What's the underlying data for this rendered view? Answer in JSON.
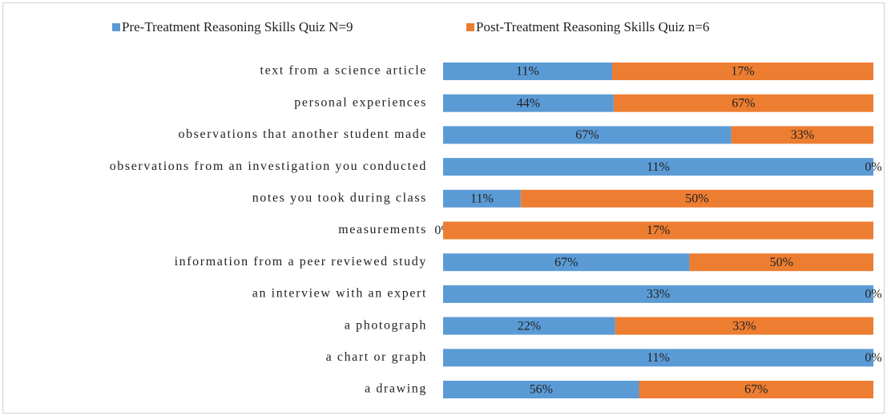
{
  "chart_data": {
    "type": "bar",
    "orientation": "horizontal",
    "stacking": "percent",
    "categories": [
      "text from a science article",
      "personal experiences",
      "observations that another student made",
      "observations from an investigation you conducted",
      "notes you took during class",
      "measurements",
      "information from a peer reviewed study",
      "an interview with an expert",
      "a photograph",
      "a chart or graph",
      "a drawing"
    ],
    "series": [
      {
        "name": "Pre-Treatment Reasoning Skills Quiz N=9",
        "color": "#5b9bd5",
        "values": [
          11,
          44,
          67,
          11,
          11,
          0,
          67,
          33,
          22,
          11,
          56
        ],
        "value_labels": [
          "11%",
          "44%",
          "67%",
          "11%",
          "11%",
          "0%",
          "67%",
          "33%",
          "22%",
          "11%",
          "56%"
        ]
      },
      {
        "name": "Post-Treatment Reasoning Skills Quiz n=6",
        "color": "#ed7d31",
        "values": [
          17,
          67,
          33,
          0,
          50,
          17,
          50,
          0,
          33,
          0,
          67
        ],
        "value_labels": [
          "17%",
          "67%",
          "33%",
          "0%",
          "50%",
          "17%",
          "50%",
          "0%",
          "33%",
          "0%",
          "67%"
        ]
      }
    ],
    "legend": "top"
  }
}
